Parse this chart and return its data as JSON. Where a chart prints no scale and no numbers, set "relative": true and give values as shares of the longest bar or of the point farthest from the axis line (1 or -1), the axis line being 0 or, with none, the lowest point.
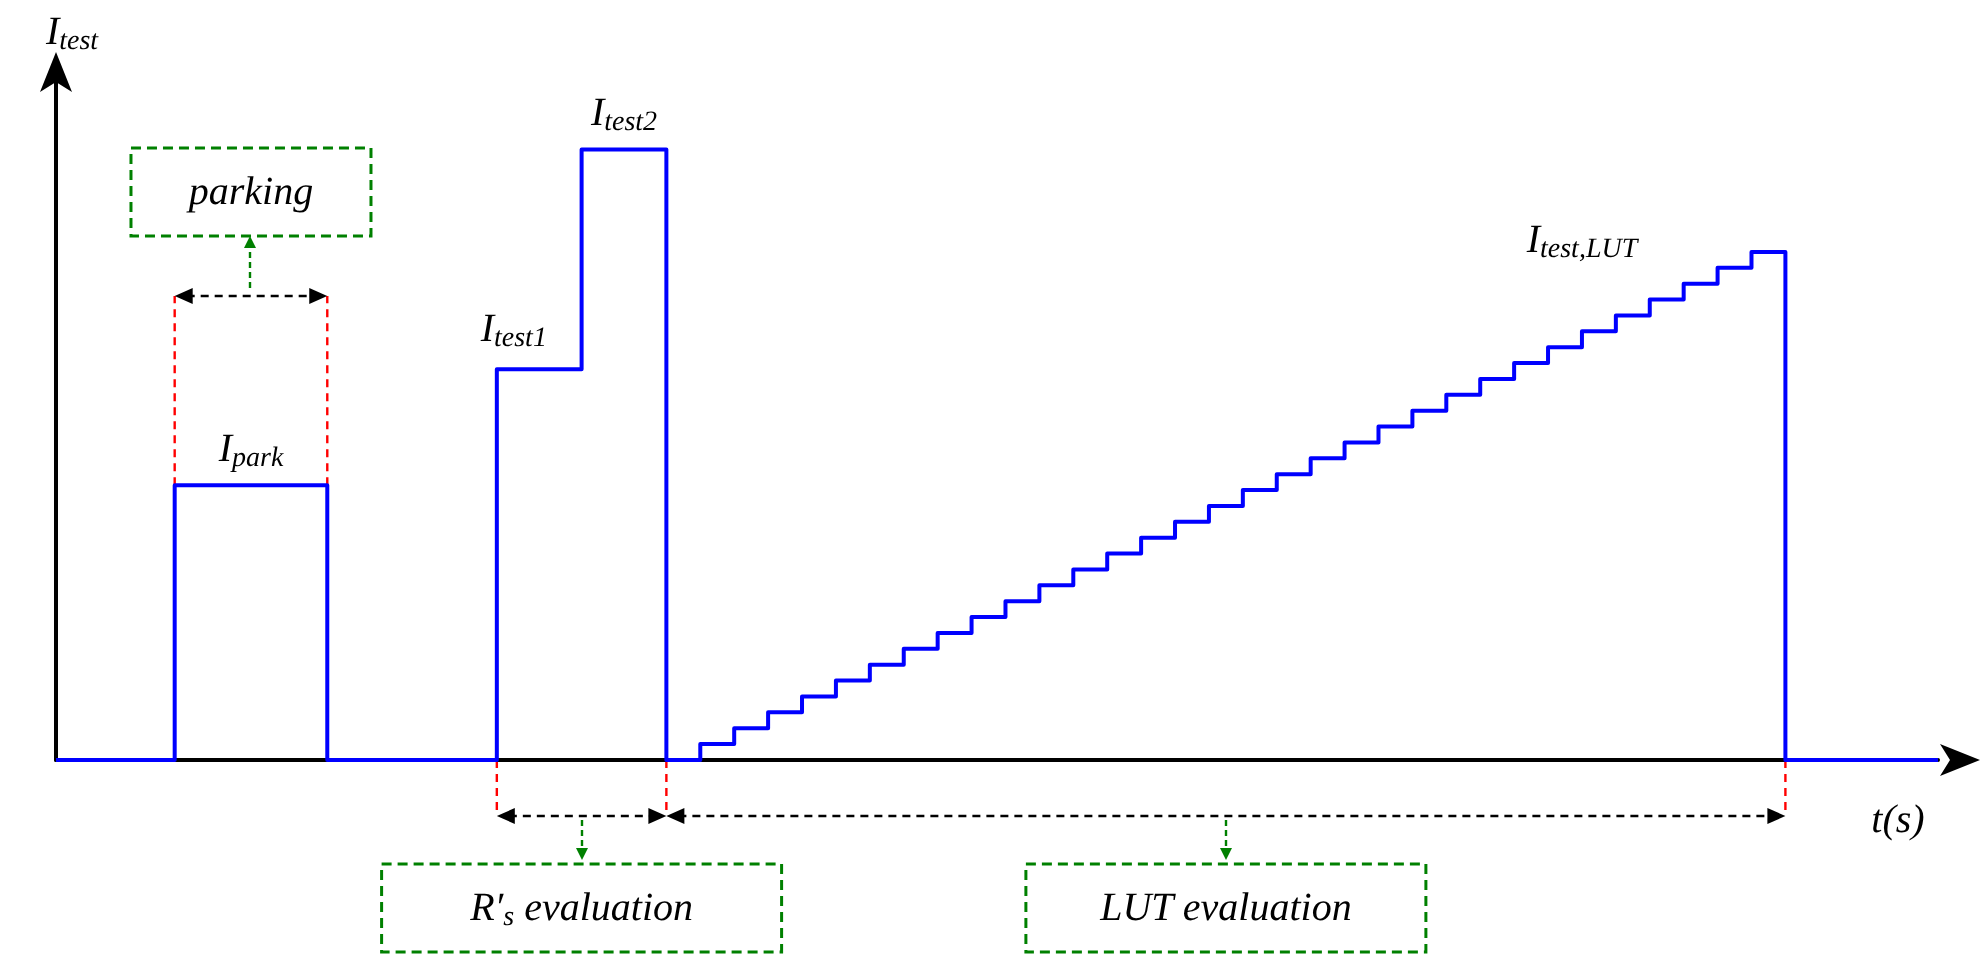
{
  "chart_data": {
    "type": "step",
    "relative": true,
    "xlabel": "t(s)",
    "ylabel": "I$_{test}$",
    "categories": [
      null,
      null,
      null,
      null,
      null,
      null,
      null,
      null,
      null,
      null,
      null,
      null,
      null,
      null,
      null,
      null,
      null,
      null,
      null,
      null,
      null,
      null,
      null,
      null,
      null,
      null,
      null,
      null,
      null,
      null,
      null,
      null,
      null,
      null,
      null,
      null,
      null,
      null,
      null,
      null,
      null,
      null,
      null,
      null,
      null,
      null,
      null,
      null,
      null,
      null,
      null,
      null,
      null,
      null,
      null,
      null,
      null,
      null,
      null,
      null,
      null,
      null,
      null,
      null,
      null,
      null,
      null,
      null,
      null,
      null,
      null,
      null,
      null,
      null,
      null,
      null,
      null,
      null,
      null,
      null,
      null,
      null,
      null,
      null,
      null,
      null,
      null,
      null,
      null,
      null,
      null,
      null,
      null,
      null,
      null,
      null,
      null,
      null,
      null,
      null,
      null,
      null,
      null,
      null,
      null,
      null,
      null,
      null,
      null,
      null,
      null,
      null
    ],
    "series": [
      {
        "color": "#0000ff",
        "values": [
          0,
          0,
          0,
          0,
          0,
          0,
          0,
          0.45,
          0.45,
          0.45,
          0.45,
          0.45,
          0.45,
          0.45,
          0.45,
          0.45,
          0,
          0,
          0,
          0,
          0,
          0,
          0,
          0,
          0,
          0,
          0.64,
          0.64,
          0.64,
          0.64,
          0.64,
          1,
          1,
          1,
          1,
          1,
          0,
          0,
          0.026,
          0.026,
          0.052,
          0.052,
          0.078,
          0.078,
          0.104,
          0.104,
          0.13,
          0.13,
          0.156,
          0.156,
          0.182,
          0.182,
          0.208,
          0.208,
          0.234,
          0.234,
          0.26,
          0.26,
          0.286,
          0.286,
          0.312,
          0.312,
          0.338,
          0.338,
          0.364,
          0.364,
          0.39,
          0.39,
          0.416,
          0.416,
          0.442,
          0.442,
          0.468,
          0.468,
          0.494,
          0.494,
          0.52,
          0.52,
          0.546,
          0.546,
          0.572,
          0.572,
          0.598,
          0.598,
          0.624,
          0.624,
          0.65,
          0.65,
          0.676,
          0.676,
          0.702,
          0.702,
          0.728,
          0.728,
          0.754,
          0.754,
          0.78,
          0.78,
          0.806,
          0.806,
          0.832,
          0.832,
          0,
          0,
          0,
          0,
          0,
          0,
          0,
          0,
          0,
          0
        ]
      }
    ],
    "annotations": [
      "I$_{park}$",
      "I$_{test1}$",
      "I$_{test2}$",
      "I$_{test,LUT}$",
      "parking",
      "R′$_{s}$ evaluation",
      "LUT evaluation"
    ]
  }
}
